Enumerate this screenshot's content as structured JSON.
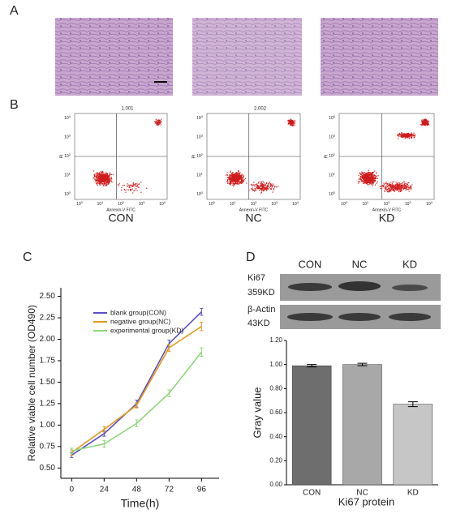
{
  "panels": {
    "a": "A",
    "b": "B",
    "c": "C",
    "d": "D"
  },
  "flow": {
    "groups": [
      "CON",
      "NC",
      "KD"
    ],
    "quadrant_values": [
      "1.001",
      "2.002"
    ],
    "x_label": "Annexin-V FITC",
    "y_label": "PI",
    "tick_base": "10",
    "tick_exponents": [
      "0",
      "1",
      "2",
      "3",
      "4"
    ]
  },
  "blot": {
    "groups": [
      "CON",
      "NC",
      "KD"
    ],
    "rows": [
      {
        "name": "Ki67",
        "size": "359KD"
      },
      {
        "name": "β-Actin",
        "size": "43KD"
      }
    ]
  },
  "chart_data": [
    {
      "type": "line",
      "x_label": "Time(h)",
      "y_label": "Relative viable cell number (OD490)",
      "x": [
        0,
        24,
        48,
        72,
        96
      ],
      "xlim": [
        -8,
        109
      ],
      "xticks": [
        0,
        24,
        48,
        72,
        96
      ],
      "ylim": [
        0.38,
        2.6
      ],
      "yticks": [
        {
          "value": 0.5,
          "label": "0.50"
        },
        {
          "value": 0.75,
          "label": "0.75"
        },
        {
          "value": 1,
          "label": "1.00"
        },
        {
          "value": 1.25,
          "label": "1.25"
        },
        {
          "value": 1.5,
          "label": "1.50"
        },
        {
          "value": 1.75,
          "label": "1.75"
        },
        {
          "value": 2,
          "label": "2.00"
        },
        {
          "value": 2.25,
          "label": "2.25"
        },
        {
          "value": 2.5,
          "label": "2.50"
        }
      ],
      "series": [
        {
          "name": "blank group(CON)",
          "color": "#5b4fc4",
          "values": [
            0.65,
            0.9,
            1.25,
            1.95,
            2.32
          ],
          "errors": [
            0.03,
            0.03,
            0.04,
            0.04,
            0.04
          ]
        },
        {
          "name": "negative group(NC)",
          "color": "#e39a1b",
          "values": [
            0.68,
            0.95,
            1.23,
            1.9,
            2.15
          ],
          "errors": [
            0.03,
            0.03,
            0.03,
            0.04,
            0.05
          ]
        },
        {
          "name": "experimental group(KD)",
          "color": "#8ed67a",
          "values": [
            0.7,
            0.78,
            1.02,
            1.37,
            1.85
          ],
          "errors": [
            0.03,
            0.04,
            0.04,
            0.04,
            0.05
          ]
        }
      ]
    },
    {
      "type": "bar",
      "x_label": "Ki67  protein",
      "y_label": "Gray value",
      "categories": [
        "CON",
        "NC",
        "KD"
      ],
      "values": [
        0.99,
        1.0,
        0.67
      ],
      "errors": [
        0.01,
        0.01,
        0.02
      ],
      "colors": [
        "#6e6e6e",
        "#a8a8a8",
        "#c6c6c6"
      ],
      "ylim": [
        0,
        1.2
      ],
      "yticks": [
        {
          "value": 0,
          "label": "0.00"
        },
        {
          "value": 0.2,
          "label": "0.20"
        },
        {
          "value": 0.4,
          "label": "0.40"
        },
        {
          "value": 0.6,
          "label": "0.60"
        },
        {
          "value": 0.8,
          "label": "0.80"
        },
        {
          "value": 1,
          "label": "1.00"
        },
        {
          "value": 1.2,
          "label": "1.20"
        }
      ]
    }
  ]
}
